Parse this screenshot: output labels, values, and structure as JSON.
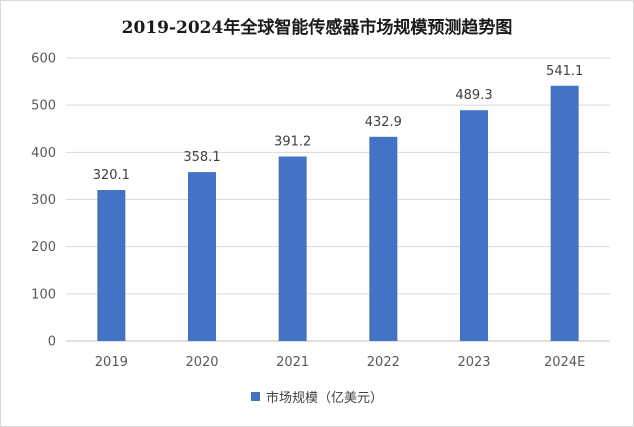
{
  "chart_data": {
    "type": "bar",
    "title": "2019-2024年全球智能传感器市场规模预测趋势图",
    "categories": [
      "2019",
      "2020",
      "2021",
      "2022",
      "2023",
      "2024E"
    ],
    "series": [
      {
        "name": "市场规模（亿美元）",
        "values": [
          320.1,
          358.1,
          391.2,
          432.9,
          489.3,
          541.1
        ],
        "color": "#4472c4"
      }
    ],
    "data_labels": [
      "320.1",
      "358.1",
      "391.2",
      "432.9",
      "489.3",
      "541.1"
    ],
    "yticks": [
      0,
      100,
      200,
      300,
      400,
      500,
      600
    ],
    "ylim": [
      0,
      600
    ],
    "grid": true,
    "legend_position": "bottom",
    "xlabel": "",
    "ylabel": ""
  }
}
